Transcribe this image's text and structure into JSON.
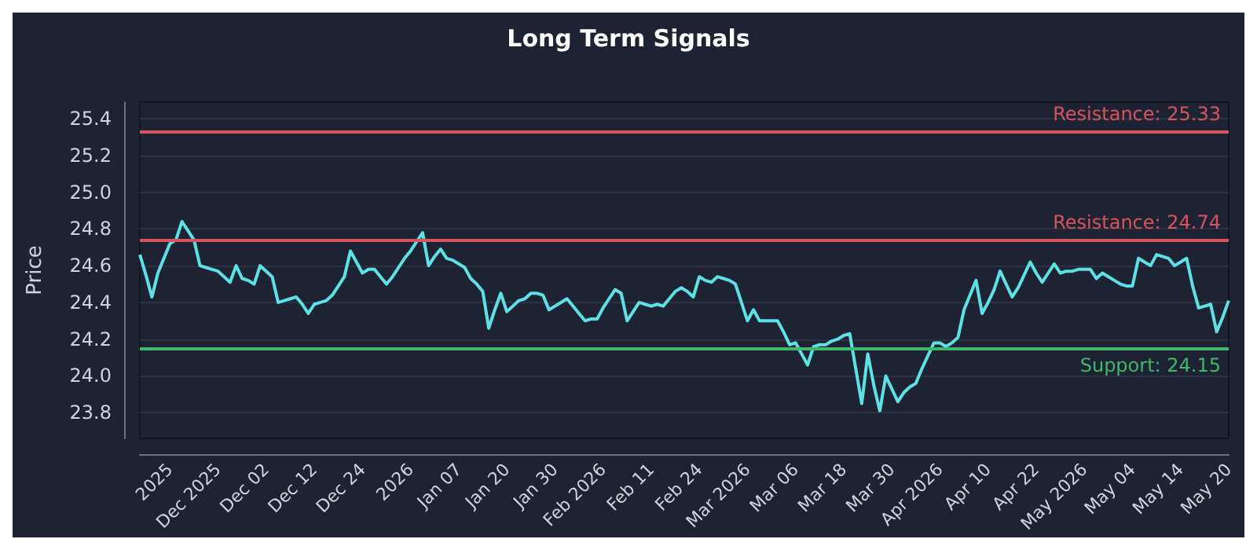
{
  "chart_data": {
    "type": "line",
    "title": "Long Term Signals",
    "ylabel": "Price",
    "categories": [
      null,
      null,
      null,
      null,
      null,
      "2025",
      null,
      null,
      null,
      null,
      null,
      null,
      null,
      "Dec 2025",
      null,
      null,
      null,
      null,
      null,
      null,
      null,
      "Dec 02",
      null,
      null,
      null,
      null,
      null,
      null,
      null,
      "Dec 12",
      null,
      null,
      null,
      null,
      null,
      null,
      null,
      "Dec 24",
      null,
      null,
      null,
      null,
      null,
      null,
      null,
      "2026",
      null,
      null,
      null,
      null,
      null,
      null,
      null,
      "Jan 07",
      null,
      null,
      null,
      null,
      null,
      null,
      null,
      "Jan 20",
      null,
      null,
      null,
      null,
      null,
      null,
      null,
      "Jan 30",
      null,
      null,
      null,
      null,
      null,
      null,
      null,
      "Feb 2026",
      null,
      null,
      null,
      null,
      null,
      null,
      null,
      "Feb 11",
      null,
      null,
      null,
      null,
      null,
      null,
      null,
      "Feb 24",
      null,
      null,
      null,
      null,
      null,
      null,
      null,
      "Mar 2026",
      null,
      null,
      null,
      null,
      null,
      null,
      null,
      "Mar 06",
      null,
      null,
      null,
      null,
      null,
      null,
      null,
      "Mar 18",
      null,
      null,
      null,
      null,
      null,
      null,
      null,
      "Mar 30",
      null,
      null,
      null,
      null,
      null,
      null,
      null,
      "Apr 2026",
      null,
      null,
      null,
      null,
      null,
      null,
      null,
      "Apr 10",
      null,
      null,
      null,
      null,
      null,
      null,
      null,
      "Apr 22",
      null,
      null,
      null,
      null,
      null,
      null,
      null,
      "May 2026",
      null,
      null,
      null,
      null,
      null,
      null,
      null,
      "May 04",
      null,
      null,
      null,
      null,
      null,
      null,
      null,
      "May 14",
      null,
      null,
      null,
      null,
      null,
      null,
      null,
      "May 20"
    ],
    "series": [
      {
        "color": "#5ce1e6",
        "values": [
          24.66,
          24.55,
          24.43,
          24.56,
          24.64,
          24.72,
          24.74,
          24.84,
          24.79,
          24.74,
          24.6,
          24.59,
          24.58,
          24.57,
          24.54,
          24.51,
          24.6,
          24.53,
          24.52,
          24.5,
          24.6,
          24.57,
          24.54,
          24.4,
          24.41,
          24.42,
          24.43,
          24.39,
          24.34,
          24.39,
          24.4,
          24.41,
          24.44,
          24.49,
          24.54,
          24.68,
          24.62,
          24.56,
          24.58,
          24.58,
          24.54,
          24.5,
          24.54,
          24.59,
          24.64,
          24.68,
          24.73,
          24.78,
          24.6,
          24.65,
          24.69,
          24.64,
          24.63,
          24.61,
          24.59,
          24.53,
          24.5,
          24.46,
          24.26,
          24.36,
          24.45,
          24.35,
          24.38,
          24.41,
          24.42,
          24.45,
          24.45,
          24.44,
          24.36,
          24.38,
          24.4,
          24.42,
          24.38,
          24.34,
          24.3,
          24.31,
          24.31,
          24.37,
          24.42,
          24.47,
          24.45,
          24.3,
          24.35,
          24.4,
          24.39,
          24.38,
          24.39,
          24.38,
          24.42,
          24.46,
          24.48,
          24.46,
          24.43,
          24.54,
          24.52,
          24.51,
          24.54,
          24.53,
          24.52,
          24.5,
          24.4,
          24.3,
          24.36,
          24.3,
          24.3,
          24.3,
          24.3,
          24.24,
          24.17,
          24.18,
          24.12,
          24.06,
          24.16,
          24.17,
          24.17,
          24.19,
          24.2,
          24.22,
          24.23,
          24.04,
          23.85,
          24.12,
          23.95,
          23.81,
          24.0,
          23.93,
          23.86,
          23.91,
          23.94,
          23.96,
          24.04,
          24.11,
          24.18,
          24.18,
          24.16,
          24.18,
          24.21,
          24.36,
          24.44,
          24.52,
          24.34,
          24.4,
          24.47,
          24.57,
          24.5,
          24.43,
          24.48,
          24.55,
          24.62,
          24.56,
          24.51,
          24.56,
          24.61,
          24.56,
          24.57,
          24.57,
          24.58,
          24.58,
          24.58,
          24.53,
          24.56,
          24.54,
          24.52,
          24.5,
          24.49,
          24.49,
          24.64,
          24.62,
          24.6,
          24.66,
          24.65,
          24.64,
          24.6,
          24.62,
          24.64,
          24.49,
          24.37,
          24.38,
          24.39,
          24.24,
          24.32,
          24.41
        ]
      }
    ],
    "ylim": [
      23.66,
      25.49
    ],
    "yticks": [
      23.8,
      {
        "value": 24,
        "label": "24.0"
      },
      24.2,
      24.4,
      24.6,
      24.8,
      {
        "value": 25,
        "label": "25.0"
      },
      25.2,
      25.4
    ],
    "grid": "y",
    "ref_lines": [
      {
        "axis": "y",
        "value": 25.33,
        "label": "Resistance: 25.33",
        "color": "#d9535f"
      },
      {
        "axis": "y",
        "value": 24.74,
        "label": "Resistance: 24.74",
        "color": "#d9535f"
      },
      {
        "axis": "y",
        "value": 24.15,
        "label": "Support: 24.15",
        "color": "#3fb86e"
      }
    ]
  }
}
